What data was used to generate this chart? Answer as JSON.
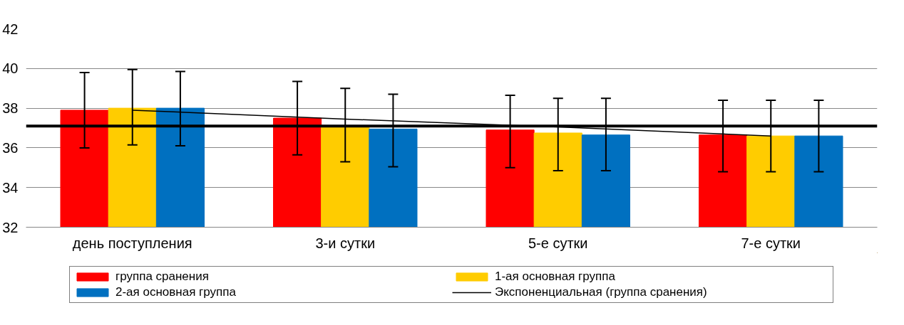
{
  "chart_data": {
    "type": "bar",
    "categories": [
      "день поступления",
      "3-и сутки",
      "5-е сутки",
      "7-е сутки"
    ],
    "series": [
      {
        "name": "группа сранения",
        "color": "#ff0000",
        "values": [
          37.9,
          37.5,
          36.9,
          36.65
        ],
        "errors": [
          [
            36.0,
            39.8
          ],
          [
            35.65,
            39.35
          ],
          [
            35.0,
            38.65
          ],
          [
            34.8,
            38.4
          ]
        ]
      },
      {
        "name": "1-ая основная группа",
        "color": "#ffcc00",
        "values": [
          38.0,
          37.05,
          36.75,
          36.6
        ],
        "errors": [
          [
            36.15,
            39.95
          ],
          [
            35.3,
            39.0
          ],
          [
            34.85,
            38.5
          ],
          [
            34.8,
            38.4
          ]
        ]
      },
      {
        "name": "2-ая основная группа",
        "color": "#0070c0",
        "values": [
          38.0,
          36.95,
          36.65,
          36.6
        ],
        "errors": [
          [
            36.1,
            39.85
          ],
          [
            35.05,
            38.7
          ],
          [
            34.85,
            38.5
          ],
          [
            34.8,
            38.4
          ]
        ]
      },
      {
        "name": "Экспоненциальная (группа сранения)",
        "type": "line",
        "color": "#000000",
        "values": [
          37.9,
          37.45,
          37.05,
          36.6
        ]
      }
    ],
    "ylim": [
      32,
      42
    ],
    "yticks": [
      32,
      34,
      36,
      38,
      40,
      42
    ],
    "ref_lines": [
      {
        "axis": "y",
        "value": 37.1,
        "color": "#000000"
      }
    ],
    "grid": "y",
    "legend": "bottom"
  }
}
